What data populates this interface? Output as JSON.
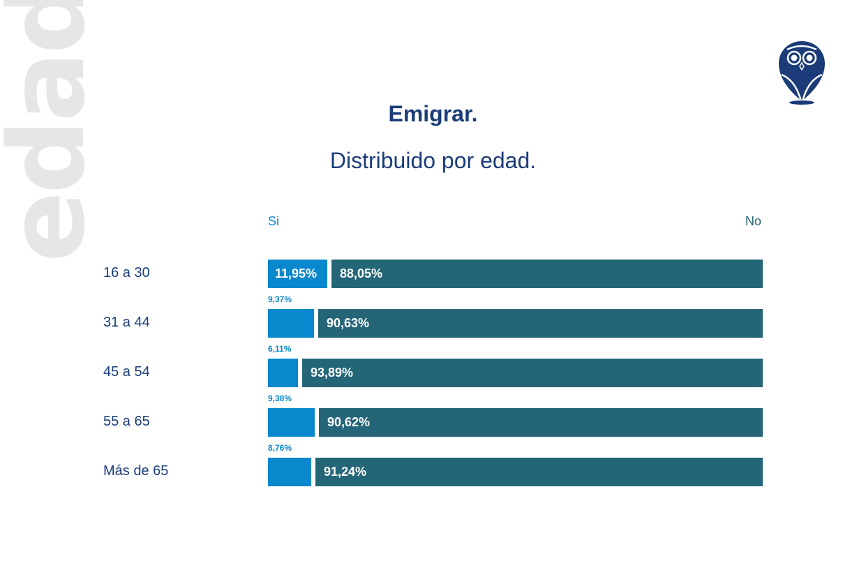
{
  "watermark": "edad",
  "colors": {
    "si": "#0a88cd",
    "no": "#246578",
    "title": "#1b3c78",
    "watermark": "#e6e6e6"
  },
  "logo": "owl-logo",
  "chart_data": {
    "type": "bar",
    "orientation": "horizontal",
    "stacked": true,
    "title": "Emigrar.",
    "subtitle": "Distribuido por edad.",
    "legend": [
      "Si",
      "No"
    ],
    "legend_placement": "top",
    "categories": [
      "16 a 30",
      "31 a 44",
      "45 a 54",
      "55 a 65",
      "Más de 65"
    ],
    "series": [
      {
        "name": "Si",
        "values": [
          11.95,
          9.37,
          6.11,
          9.38,
          8.76
        ],
        "labels": [
          "11,95%",
          "9,37%",
          "6,11%",
          "9,38%",
          "8,76%"
        ]
      },
      {
        "name": "No",
        "values": [
          88.05,
          90.63,
          93.89,
          90.62,
          91.24
        ],
        "labels": [
          "88,05%",
          "90,63%",
          "93,89%",
          "90,62%",
          "91,24%"
        ]
      }
    ],
    "xlim": [
      0,
      100
    ],
    "grid": false
  }
}
